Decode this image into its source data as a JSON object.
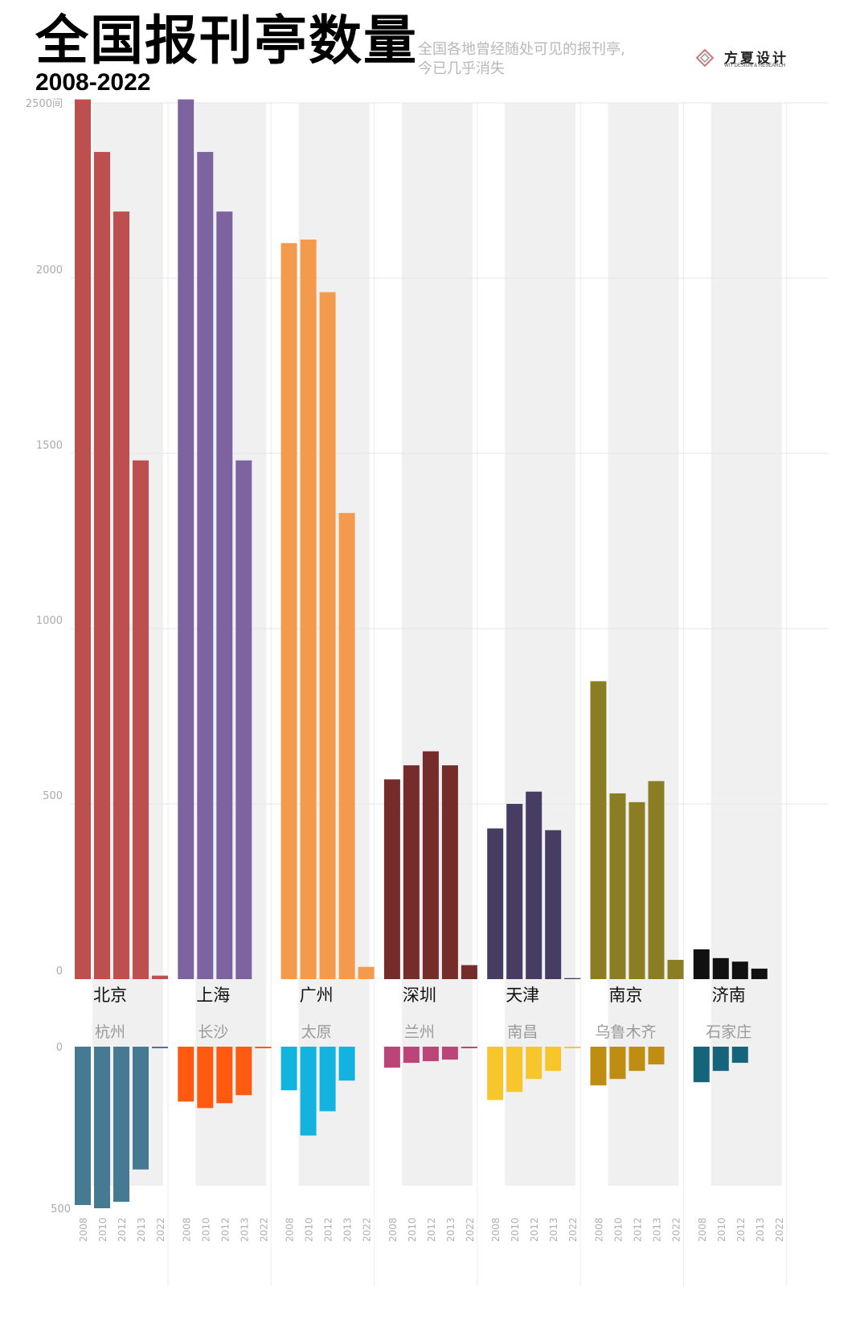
{
  "header": {
    "title": "全国报刊亭数量",
    "years": "2008-2022",
    "subtitle_line1": "全国各地曾经随处可见的报刊亭,",
    "subtitle_line2": "今已几乎消失"
  },
  "logo": {
    "name": "方夏设计",
    "tagline": "WIT DESIGN & RESEARCH"
  },
  "chart_data": [
    {
      "type": "bar",
      "years": [
        "2008",
        "2010",
        "2012",
        "2013",
        "2022"
      ],
      "ylim": [
        0,
        2500
      ],
      "ytick_labels": [
        "2500间",
        "2000",
        "1500",
        "1000",
        "500",
        "0"
      ],
      "grid": true,
      "series": [
        {
          "name": "北京",
          "color": "#bd4f4f",
          "values": [
            2510,
            2360,
            2190,
            1480,
            10
          ]
        },
        {
          "name": "上海",
          "color": "#7e63a1",
          "values": [
            2510,
            2360,
            2190,
            1480,
            0
          ]
        },
        {
          "name": "广州",
          "color": "#f49a4c",
          "values": [
            2100,
            2110,
            1960,
            1330,
            35
          ]
        },
        {
          "name": "深圳",
          "color": "#772c2c",
          "values": [
            570,
            610,
            650,
            610,
            40
          ]
        },
        {
          "name": "天津",
          "color": "#473d62",
          "values": [
            430,
            500,
            535,
            425,
            3
          ]
        },
        {
          "name": "南京",
          "color": "#8b7d24",
          "values": [
            850,
            530,
            505,
            565,
            55
          ]
        },
        {
          "name": "济南",
          "color": "#111111",
          "values": [
            85,
            60,
            50,
            30,
            0
          ]
        }
      ]
    },
    {
      "type": "bar",
      "years": [
        "2008",
        "2010",
        "2012",
        "2013",
        "2022"
      ],
      "ylim": [
        0,
        500
      ],
      "ytick_labels": [
        "0",
        "500"
      ],
      "direction": "downward",
      "series": [
        {
          "name": "杭州",
          "color": "#457a92",
          "values": [
            490,
            500,
            480,
            380,
            5
          ]
        },
        {
          "name": "长沙",
          "color": "#ff5a10",
          "values": [
            170,
            190,
            175,
            150,
            5
          ]
        },
        {
          "name": "太原",
          "color": "#13b3e0",
          "values": [
            135,
            275,
            200,
            105,
            0
          ]
        },
        {
          "name": "兰州",
          "color": "#bb4579",
          "values": [
            65,
            50,
            45,
            40,
            3
          ]
        },
        {
          "name": "南昌",
          "color": "#f7c52c",
          "values": [
            165,
            140,
            100,
            75,
            3
          ]
        },
        {
          "name": "乌鲁木齐",
          "color": "#bf8d12",
          "values": [
            120,
            100,
            75,
            55,
            0
          ]
        },
        {
          "name": "石家庄",
          "color": "#15647b",
          "values": [
            110,
            75,
            50,
            0,
            0
          ]
        }
      ]
    }
  ]
}
